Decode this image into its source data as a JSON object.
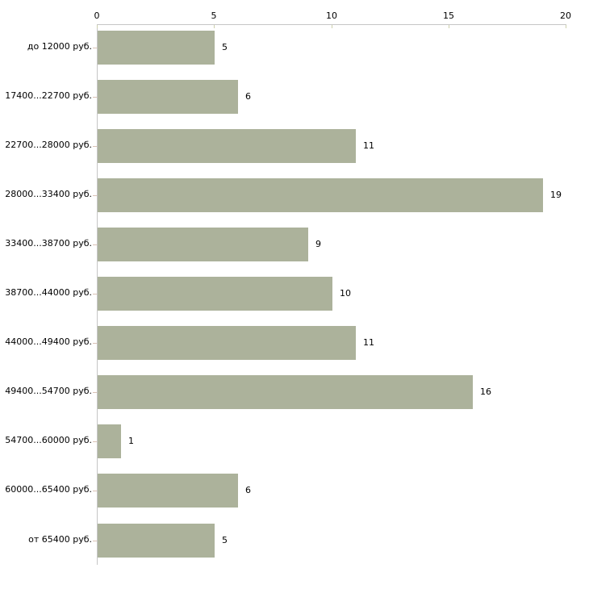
{
  "chart_data": {
    "type": "bar",
    "orientation": "horizontal",
    "title": "",
    "xlabel": "",
    "ylabel": "",
    "categories": [
      "до 12000 руб.",
      "17400...22700 руб.",
      "22700...28000 руб.",
      "28000...33400 руб.",
      "33400...38700 руб.",
      "38700...44000 руб.",
      "44000...49400 руб.",
      "49400...54700 руб.",
      "54700...60000 руб.",
      "60000...65400 руб.",
      "от 65400 руб."
    ],
    "values": [
      5,
      6,
      11,
      19,
      9,
      10,
      11,
      16,
      1,
      6,
      5
    ],
    "xlim": [
      0,
      20
    ],
    "x_ticks": [
      "0",
      "5",
      "10",
      "15",
      "20"
    ],
    "x_tick_values": [
      0,
      5,
      10,
      15,
      20
    ],
    "grid": false,
    "legend": "none",
    "axis_position": "top",
    "bar_color": "#acb29b",
    "axis_color": "#c6c6c6",
    "x_tick_color": "#cdd0ad",
    "y_tick_color": "#d9c1b5",
    "text_color": "#000000",
    "background_color": "#ffffff"
  }
}
